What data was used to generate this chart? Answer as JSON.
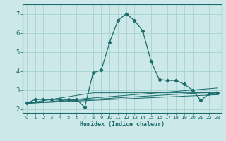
{
  "xlabel": "Humidex (Indice chaleur)",
  "bg_color": "#cce8e8",
  "grid_color": "#aad4d4",
  "line_color": "#1a6b6b",
  "xlim": [
    -0.5,
    23.5
  ],
  "ylim": [
    1.8,
    7.5
  ],
  "xticks": [
    0,
    1,
    2,
    3,
    4,
    5,
    6,
    7,
    8,
    9,
    10,
    11,
    12,
    13,
    14,
    15,
    16,
    17,
    18,
    19,
    20,
    21,
    22,
    23
  ],
  "yticks": [
    2,
    3,
    4,
    5,
    6,
    7
  ],
  "main_x": [
    0,
    1,
    2,
    3,
    4,
    5,
    6,
    7,
    8,
    9,
    10,
    11,
    12,
    13,
    14,
    15,
    16,
    17,
    18,
    19,
    20,
    21,
    22,
    23
  ],
  "main_y": [
    2.3,
    2.5,
    2.5,
    2.5,
    2.5,
    2.5,
    2.5,
    2.1,
    3.9,
    4.05,
    5.5,
    6.65,
    7.0,
    6.65,
    6.1,
    4.5,
    3.55,
    3.5,
    3.5,
    3.3,
    3.0,
    2.45,
    2.8,
    2.85
  ],
  "line2_x": [
    0,
    23
  ],
  "line2_y": [
    2.3,
    2.75
  ],
  "line3_x": [
    0,
    23
  ],
  "line3_y": [
    2.3,
    2.9
  ],
  "line4_x": [
    0,
    23
  ],
  "line4_y": [
    2.3,
    3.1
  ],
  "line5_x": [
    0,
    8,
    23
  ],
  "line5_y": [
    2.3,
    2.85,
    2.85
  ]
}
